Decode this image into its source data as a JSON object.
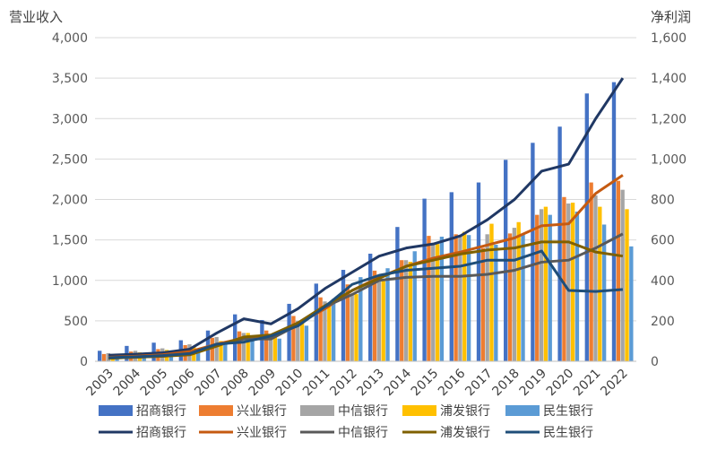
{
  "chart_data": {
    "type": "bar",
    "left_axis_title": "营业收入",
    "right_axis_title": "净利润",
    "categories": [
      "2003",
      "2004",
      "2005",
      "2006",
      "2007",
      "2008",
      "2009",
      "2010",
      "2011",
      "2012",
      "2013",
      "2014",
      "2015",
      "2016",
      "2017",
      "2018",
      "2019",
      "2020",
      "2021",
      "2022"
    ],
    "ylim_left": [
      0,
      4000
    ],
    "ylim_right": [
      0,
      1600
    ],
    "yticks_left": [
      "0",
      "500",
      "1,000",
      "1,500",
      "2,000",
      "2,500",
      "3,000",
      "3,500",
      "4,000"
    ],
    "yticks_right": [
      "0",
      "200",
      "400",
      "600",
      "800",
      "1,000",
      "1,200",
      "1,400",
      "1,600"
    ],
    "grid": true,
    "legend_position": "bottom",
    "bar_series": [
      {
        "name": "招商银行",
        "color": "#4472c4",
        "values": [
          130,
          190,
          230,
          260,
          380,
          580,
          510,
          710,
          960,
          1130,
          1330,
          1660,
          2010,
          2090,
          2210,
          2490,
          2700,
          2900,
          3310,
          3450
        ]
      },
      {
        "name": "兴业银行",
        "color": "#ed7d31",
        "values": [
          90,
          120,
          150,
          200,
          290,
          370,
          380,
          560,
          790,
          950,
          1120,
          1250,
          1550,
          1570,
          1400,
          1580,
          1810,
          2030,
          2210,
          2230
        ]
      },
      {
        "name": "中信银行",
        "color": "#a5a5a5",
        "values": [
          100,
          130,
          160,
          210,
          300,
          350,
          330,
          500,
          740,
          830,
          1050,
          1250,
          1450,
          1550,
          1570,
          1650,
          1880,
          1950,
          2050,
          2120
        ]
      },
      {
        "name": "浦发银行",
        "color": "#ffc000",
        "values": [
          90,
          110,
          140,
          180,
          250,
          350,
          340,
          500,
          690,
          830,
          1000,
          1230,
          1450,
          1600,
          1700,
          1720,
          1910,
          1960,
          1910,
          1880
        ]
      },
      {
        "name": "民生银行",
        "color": "#5b9bd5",
        "values": [
          80,
          100,
          120,
          150,
          240,
          300,
          280,
          440,
          770,
          1040,
          1150,
          1360,
          1540,
          1560,
          1440,
          1570,
          1810,
          1850,
          1690,
          1420
        ]
      }
    ],
    "line_series": [
      {
        "name": "招商银行",
        "color": "#203864",
        "values": [
          30,
          35,
          42,
          60,
          140,
          210,
          185,
          260,
          360,
          440,
          520,
          560,
          580,
          620,
          700,
          800,
          940,
          975,
          1200,
          1400
        ]
      },
      {
        "name": "兴业银行",
        "color": "#c55a11",
        "values": [
          20,
          25,
          32,
          48,
          85,
          115,
          120,
          185,
          260,
          350,
          415,
          470,
          510,
          540,
          575,
          610,
          670,
          680,
          830,
          920
        ]
      },
      {
        "name": "中信银行",
        "color": "#595959",
        "values": [
          15,
          20,
          25,
          35,
          80,
          110,
          110,
          180,
          270,
          330,
          400,
          415,
          420,
          420,
          430,
          450,
          490,
          500,
          560,
          630
        ]
      },
      {
        "name": "浦发银行",
        "color": "#7f6000",
        "values": [
          15,
          20,
          25,
          32,
          75,
          120,
          130,
          190,
          275,
          350,
          410,
          470,
          500,
          530,
          550,
          560,
          590,
          590,
          540,
          520
        ]
      },
      {
        "name": "民生银行",
        "color": "#1f4e79",
        "values": [
          18,
          22,
          28,
          38,
          85,
          95,
          125,
          175,
          270,
          380,
          425,
          450,
          460,
          470,
          500,
          500,
          545,
          350,
          345,
          355
        ]
      }
    ]
  }
}
